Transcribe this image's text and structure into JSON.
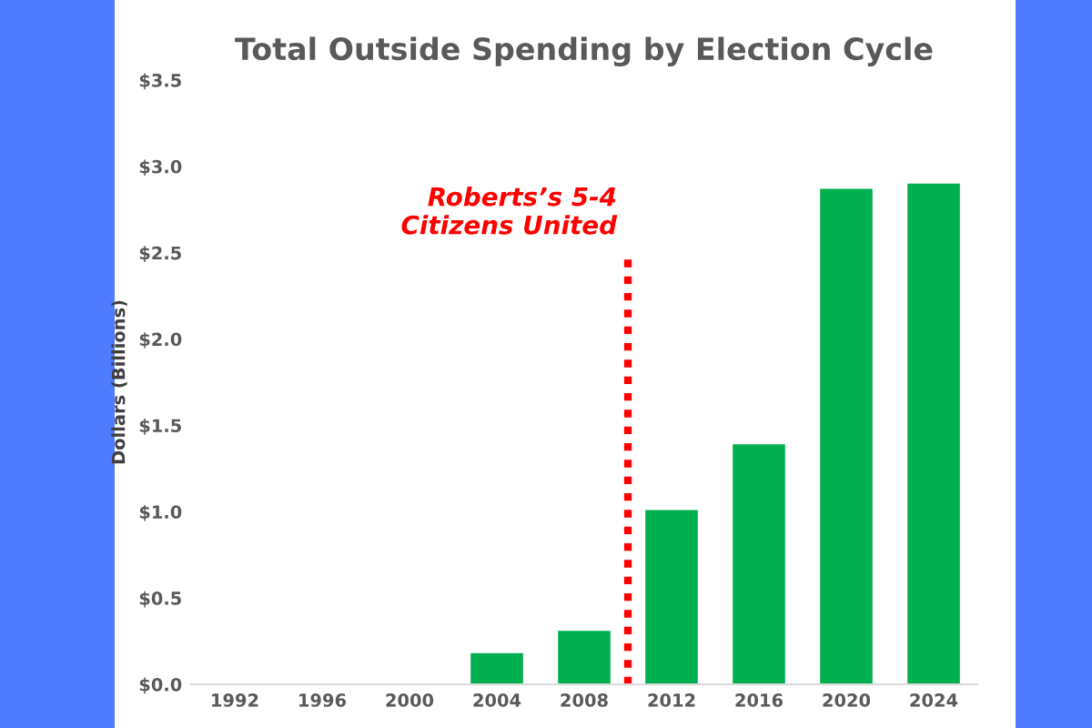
{
  "chart_data": {
    "type": "bar",
    "title": "Total Outside Spending by Election Cycle",
    "ylabel": "Dollars (Billions)",
    "x": [
      1992,
      1996,
      2000,
      2004,
      2008,
      2012,
      2016,
      2020,
      2024
    ],
    "values": [
      0,
      0,
      0,
      0.18,
      0.31,
      1.01,
      1.39,
      2.87,
      2.9
    ],
    "color": "#00b050",
    "xlim": [
      1990,
      2026
    ],
    "xticks": [
      1992,
      1996,
      2000,
      2004,
      2008,
      2012,
      2016,
      2020,
      2024
    ],
    "ylim": [
      0,
      3.5
    ],
    "yticks": [
      {
        "value": 0,
        "label": "$0.0"
      },
      {
        "value": 0.5,
        "label": "$0.5"
      },
      {
        "value": 1,
        "label": "$1.0"
      },
      {
        "value": 1.5,
        "label": "$1.5"
      },
      {
        "value": 2,
        "label": "$2.0"
      },
      {
        "value": 2.5,
        "label": "$2.5"
      },
      {
        "value": 3,
        "label": "$3.0"
      },
      {
        "value": 3.5,
        "label": "$3.5"
      }
    ],
    "ref_lines": [
      {
        "axis": "x",
        "value": 2010,
        "label": "Roberts’s 5-4\nCitizens United",
        "color": "#ff0000",
        "line_style": "dotted"
      }
    ],
    "grid": false
  }
}
